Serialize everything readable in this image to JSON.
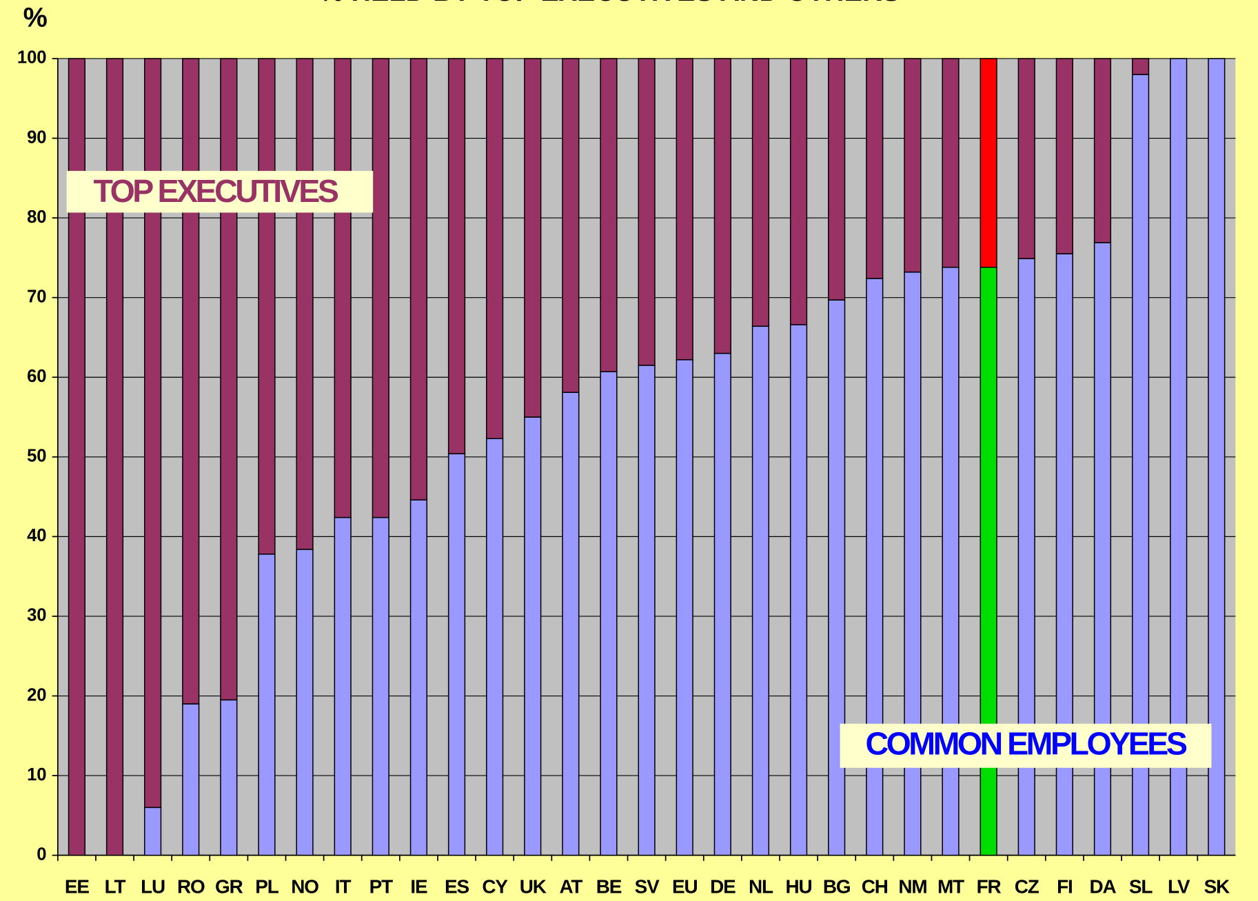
{
  "chart_data": {
    "type": "stacked_bar",
    "title": "% HELD BY TOP EXECUTIVES AND OTHERS",
    "y_axis_label": "%",
    "annotations": [
      "TOP EXECUTIVES",
      "COMMON EMPLOYEES"
    ],
    "categories": [
      "EE",
      "LT",
      "LU",
      "RO",
      "GR",
      "PL",
      "NO",
      "IT",
      "PT",
      "IE",
      "ES",
      "CY",
      "UK",
      "AT",
      "BE",
      "SV",
      "EU",
      "DE",
      "NL",
      "HU",
      "BG",
      "CH",
      "NM",
      "MT",
      "FR",
      "CZ",
      "FI",
      "DA",
      "SL",
      "LV",
      "SK"
    ],
    "series": [
      {
        "name": "COMMON EMPLOYEES",
        "color": "#9999ff",
        "highlight_color": "#00dd00",
        "values": [
          0,
          0,
          6,
          19,
          19.5,
          37.8,
          38.4,
          42.4,
          42.4,
          44.6,
          50.4,
          52.3,
          55,
          58.1,
          60.7,
          61.5,
          62.2,
          63,
          66.4,
          66.6,
          69.7,
          72.4,
          73.2,
          73.8,
          73.8,
          74.9,
          75.5,
          76.9,
          98,
          100,
          100
        ]
      },
      {
        "name": "TOP EXECUTIVES",
        "color": "#993366",
        "highlight_color": "#ff0000",
        "values": [
          100,
          100,
          94,
          81,
          80.5,
          62.2,
          61.6,
          57.6,
          57.6,
          55.4,
          49.6,
          47.7,
          45,
          41.9,
          39.3,
          38.5,
          37.8,
          37,
          33.6,
          33.4,
          30.3,
          27.6,
          26.8,
          26.2,
          26.2,
          25.1,
          24.5,
          23.1,
          2,
          0,
          0
        ]
      }
    ],
    "highlight_category": "FR",
    "ylim": [
      0,
      100
    ],
    "yticks": [
      0,
      10,
      20,
      30,
      40,
      50,
      60,
      70,
      80,
      90,
      100
    ],
    "grid": true,
    "plot_background": "#c0c0c0"
  }
}
